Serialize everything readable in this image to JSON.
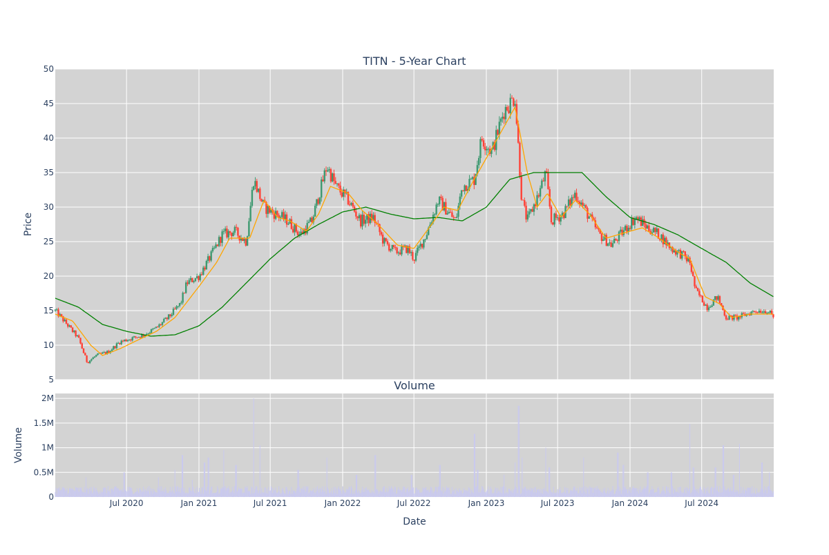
{
  "chart_data": [
    {
      "type": "candlestick",
      "title": "TITN - 5-Year Chart",
      "ylabel": "Price",
      "ylim": [
        5,
        50
      ],
      "y_ticks": [
        5,
        10,
        15,
        20,
        25,
        30,
        35,
        40,
        45,
        50
      ],
      "x_range": [
        "2020-01-02",
        "2024-12-31"
      ],
      "grid": true,
      "legend": "none",
      "colors": {
        "background": "#d3d3d3",
        "increasing": "#3d9970",
        "decreasing": "#ff4136",
        "short_ma": "#ffa500",
        "long_ma": "#008000"
      },
      "price_keypoints": [
        [
          "2020-01-02",
          15.0
        ],
        [
          "2020-02-01",
          13.0
        ],
        [
          "2020-03-01",
          11.0
        ],
        [
          "2020-03-23",
          7.5
        ],
        [
          "2020-04-15",
          8.5
        ],
        [
          "2020-05-15",
          9.0
        ],
        [
          "2020-06-15",
          10.5
        ],
        [
          "2020-07-15",
          11.0
        ],
        [
          "2020-08-15",
          11.5
        ],
        [
          "2020-09-15",
          12.5
        ],
        [
          "2020-10-15",
          14.0
        ],
        [
          "2020-11-15",
          16.0
        ],
        [
          "2020-12-01",
          19.0
        ],
        [
          "2021-01-01",
          20.0
        ],
        [
          "2021-02-01",
          23.0
        ],
        [
          "2021-03-01",
          26.0
        ],
        [
          "2021-04-01",
          26.5
        ],
        [
          "2021-05-01",
          25.0
        ],
        [
          "2021-05-20",
          34.0
        ],
        [
          "2021-06-15",
          30.0
        ],
        [
          "2021-07-15",
          29.0
        ],
        [
          "2021-08-15",
          28.0
        ],
        [
          "2021-09-15",
          26.0
        ],
        [
          "2021-10-15",
          28.0
        ],
        [
          "2021-11-22",
          36.0
        ],
        [
          "2021-12-15",
          33.0
        ],
        [
          "2022-01-15",
          31.0
        ],
        [
          "2022-02-15",
          28.0
        ],
        [
          "2022-03-20",
          28.5
        ],
        [
          "2022-04-15",
          25.0
        ],
        [
          "2022-05-15",
          23.5
        ],
        [
          "2022-06-15",
          24.0
        ],
        [
          "2022-07-01",
          22.5
        ],
        [
          "2022-08-01",
          26.0
        ],
        [
          "2022-09-01",
          31.0
        ],
        [
          "2022-10-15",
          28.0
        ],
        [
          "2022-11-01",
          33.0
        ],
        [
          "2022-12-01",
          34.0
        ],
        [
          "2022-12-20",
          40.0
        ],
        [
          "2023-01-15",
          38.0
        ],
        [
          "2023-02-15",
          44.0
        ],
        [
          "2023-03-15",
          46.0
        ],
        [
          "2023-04-01",
          31.0
        ],
        [
          "2023-04-15",
          28.0
        ],
        [
          "2023-05-15",
          32.0
        ],
        [
          "2023-06-01",
          35.0
        ],
        [
          "2023-06-15",
          28.0
        ],
        [
          "2023-07-15",
          29.0
        ],
        [
          "2023-08-15",
          32.0
        ],
        [
          "2023-09-15",
          29.0
        ],
        [
          "2023-10-15",
          26.0
        ],
        [
          "2023-11-15",
          24.5
        ],
        [
          "2023-12-15",
          26.5
        ],
        [
          "2024-01-15",
          28.5
        ],
        [
          "2024-02-15",
          27.0
        ],
        [
          "2024-03-15",
          26.0
        ],
        [
          "2024-04-15",
          24.0
        ],
        [
          "2024-05-15",
          23.0
        ],
        [
          "2024-06-01",
          22.0
        ],
        [
          "2024-06-15",
          18.0
        ],
        [
          "2024-07-15",
          15.5
        ],
        [
          "2024-08-10",
          17.0
        ],
        [
          "2024-09-01",
          14.0
        ],
        [
          "2024-10-01",
          14.0
        ],
        [
          "2024-11-15",
          15.0
        ],
        [
          "2024-12-15",
          15.0
        ],
        [
          "2024-12-31",
          14.0
        ]
      ],
      "moving_average_short": [
        [
          "2020-01-02",
          14.5
        ],
        [
          "2020-02-15",
          13.5
        ],
        [
          "2020-04-01",
          10.0
        ],
        [
          "2020-05-01",
          8.5
        ],
        [
          "2020-06-15",
          9.5
        ],
        [
          "2020-08-01",
          10.8
        ],
        [
          "2020-09-15",
          12.0
        ],
        [
          "2020-11-01",
          14.0
        ],
        [
          "2021-01-01",
          18.5
        ],
        [
          "2021-02-15",
          22.0
        ],
        [
          "2021-03-20",
          25.5
        ],
        [
          "2021-05-10",
          25.5
        ],
        [
          "2021-06-15",
          31.0
        ],
        [
          "2021-07-20",
          28.5
        ],
        [
          "2021-08-20",
          28.0
        ],
        [
          "2021-10-01",
          26.5
        ],
        [
          "2021-11-01",
          29.0
        ],
        [
          "2021-12-01",
          33.0
        ],
        [
          "2022-01-15",
          32.0
        ],
        [
          "2022-02-20",
          29.5
        ],
        [
          "2022-04-01",
          27.5
        ],
        [
          "2022-05-20",
          24.5
        ],
        [
          "2022-07-01",
          24.0
        ],
        [
          "2022-08-15",
          27.5
        ],
        [
          "2022-09-15",
          30.0
        ],
        [
          "2022-10-20",
          29.5
        ],
        [
          "2022-12-01",
          34.0
        ],
        [
          "2023-01-15",
          38.5
        ],
        [
          "2023-03-15",
          44.5
        ],
        [
          "2023-04-15",
          35.0
        ],
        [
          "2023-05-10",
          30.0
        ],
        [
          "2023-06-05",
          32.0
        ],
        [
          "2023-07-10",
          28.5
        ],
        [
          "2023-08-15",
          31.0
        ],
        [
          "2023-09-20",
          29.0
        ],
        [
          "2023-11-01",
          25.5
        ],
        [
          "2024-01-01",
          26.5
        ],
        [
          "2024-02-01",
          27.0
        ],
        [
          "2024-03-15",
          25.5
        ],
        [
          "2024-05-01",
          23.5
        ],
        [
          "2024-06-01",
          22.5
        ],
        [
          "2024-07-10",
          17.0
        ],
        [
          "2024-08-15",
          16.0
        ],
        [
          "2024-09-15",
          14.0
        ],
        [
          "2024-11-01",
          14.5
        ],
        [
          "2024-12-31",
          14.5
        ]
      ],
      "moving_average_long": [
        [
          "2020-01-02",
          16.8
        ],
        [
          "2020-03-01",
          15.5
        ],
        [
          "2020-05-01",
          13.0
        ],
        [
          "2020-07-01",
          12.0
        ],
        [
          "2020-09-01",
          11.3
        ],
        [
          "2020-11-01",
          11.5
        ],
        [
          "2021-01-01",
          12.8
        ],
        [
          "2021-03-01",
          15.5
        ],
        [
          "2021-05-01",
          19.0
        ],
        [
          "2021-07-01",
          22.5
        ],
        [
          "2021-09-01",
          25.5
        ],
        [
          "2021-11-01",
          27.5
        ],
        [
          "2022-01-01",
          29.3
        ],
        [
          "2022-03-01",
          30.0
        ],
        [
          "2022-05-01",
          29.0
        ],
        [
          "2022-07-01",
          28.3
        ],
        [
          "2022-09-01",
          28.5
        ],
        [
          "2022-11-01",
          28.0
        ],
        [
          "2023-01-01",
          30.0
        ],
        [
          "2023-03-01",
          34.0
        ],
        [
          "2023-05-01",
          35.0
        ],
        [
          "2023-07-01",
          35.0
        ],
        [
          "2023-09-01",
          35.0
        ],
        [
          "2023-11-01",
          31.5
        ],
        [
          "2024-01-01",
          28.5
        ],
        [
          "2024-03-01",
          27.5
        ],
        [
          "2024-05-01",
          26.0
        ],
        [
          "2024-07-01",
          24.0
        ],
        [
          "2024-09-01",
          22.0
        ],
        [
          "2024-11-01",
          19.0
        ],
        [
          "2024-12-31",
          17.0
        ]
      ]
    },
    {
      "type": "bar",
      "title": "Volume",
      "xlabel": "Date",
      "ylabel": "Volume",
      "ylim": [
        0,
        2100000
      ],
      "y_ticks": [
        0,
        500000,
        1000000,
        1500000,
        2000000
      ],
      "y_tick_labels": [
        "0",
        "0.5M",
        "1M",
        "1.5M",
        "2M"
      ],
      "x_ticks": [
        "2020-07-01",
        "2021-01-01",
        "2021-07-01",
        "2022-01-01",
        "2022-07-01",
        "2023-01-01",
        "2023-07-01",
        "2024-01-01",
        "2024-07-01"
      ],
      "x_tick_labels": [
        "Jul 2020",
        "Jan 2021",
        "Jul 2021",
        "Jan 2022",
        "Jul 2022",
        "Jan 2023",
        "Jul 2023",
        "Jan 2024",
        "Jul 2024"
      ],
      "bar_color": "#c9c9f0",
      "baseline": 150000,
      "spikes": [
        [
          "2020-03-20",
          400000
        ],
        [
          "2020-06-25",
          500000
        ],
        [
          "2020-09-20",
          400000
        ],
        [
          "2020-11-01",
          550000
        ],
        [
          "2020-11-20",
          850000
        ],
        [
          "2020-12-15",
          350000
        ],
        [
          "2021-01-15",
          700000
        ],
        [
          "2021-01-25",
          800000
        ],
        [
          "2021-03-05",
          950000
        ],
        [
          "2021-04-05",
          650000
        ],
        [
          "2021-05-20",
          2000000
        ],
        [
          "2021-06-05",
          1050000
        ],
        [
          "2021-09-10",
          550000
        ],
        [
          "2021-11-22",
          800000
        ],
        [
          "2022-02-05",
          450000
        ],
        [
          "2022-03-25",
          850000
        ],
        [
          "2022-06-25",
          450000
        ],
        [
          "2022-09-05",
          650000
        ],
        [
          "2022-12-02",
          1280000
        ],
        [
          "2022-12-10",
          550000
        ],
        [
          "2023-02-15",
          450000
        ],
        [
          "2023-03-15",
          700000
        ],
        [
          "2023-03-24",
          1850000
        ],
        [
          "2023-04-02",
          800000
        ],
        [
          "2023-06-01",
          1000000
        ],
        [
          "2023-06-10",
          600000
        ],
        [
          "2023-09-05",
          800000
        ],
        [
          "2023-12-01",
          900000
        ],
        [
          "2023-12-15",
          650000
        ],
        [
          "2024-02-15",
          500000
        ],
        [
          "2024-04-15",
          500000
        ],
        [
          "2024-06-01",
          1480000
        ],
        [
          "2024-06-10",
          600000
        ],
        [
          "2024-08-05",
          600000
        ],
        [
          "2024-08-25",
          1050000
        ],
        [
          "2024-09-20",
          450000
        ],
        [
          "2024-10-05",
          1080000
        ],
        [
          "2024-12-01",
          700000
        ],
        [
          "2024-12-20",
          500000
        ]
      ]
    }
  ]
}
